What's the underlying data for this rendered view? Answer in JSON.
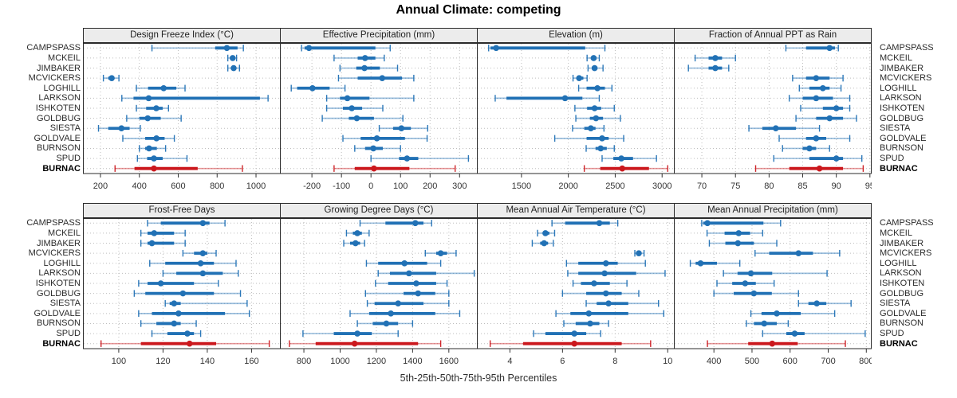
{
  "figure": {
    "title": "Annual Climate: competing",
    "caption": "5th-25th-50th-75th-95th Percentiles"
  },
  "sites": [
    "CAMPSPASS",
    "MCKEIL",
    "JIMBAKER",
    "MCVICKERS",
    "LOGHILL",
    "LARKSON",
    "ISHKOTEN",
    "GOLDBUG",
    "SIESTA",
    "GOLDVALE",
    "BURNSON",
    "SPUD",
    "BURNAC"
  ],
  "highlight_site": "BURNAC",
  "colors": {
    "series": "#2171b5",
    "highlight": "#cb181d",
    "strip_bg": "#ececec",
    "grid": "#bdbdbd",
    "axis_text": "#333333",
    "border": "#2b2b2b"
  },
  "percentile_labels": [
    "5th",
    "25th",
    "50th",
    "75th",
    "95th"
  ],
  "chart_data": [
    {
      "type": "dotplot",
      "title": "Design Freeze Index (°C)",
      "row": 0,
      "col": 0,
      "xlim": [
        112,
        1125
      ],
      "ticks": [
        200,
        400,
        600,
        800,
        1000
      ],
      "values": {
        "CAMPSPASS": [
          465,
          790,
          850,
          905,
          935
        ],
        "MCKEIL": [
          855,
          870,
          880,
          890,
          900
        ],
        "JIMBAKER": [
          855,
          875,
          885,
          895,
          915
        ],
        "MCVICKERS": [
          215,
          240,
          258,
          272,
          295
        ],
        "LOGHILL": [
          385,
          445,
          525,
          590,
          635
        ],
        "LARKSON": [
          310,
          370,
          448,
          1020,
          1062
        ],
        "ISHKOTEN": [
          385,
          435,
          487,
          520,
          550
        ],
        "GOLDBUG": [
          335,
          400,
          443,
          510,
          615
        ],
        "SIESTA": [
          190,
          240,
          308,
          350,
          405
        ],
        "GOLDVALE": [
          315,
          430,
          488,
          530,
          580
        ],
        "BURNSON": [
          400,
          430,
          450,
          490,
          535
        ],
        "SPUD": [
          390,
          440,
          475,
          520,
          645
        ],
        "BURNAC": [
          275,
          375,
          475,
          700,
          930
        ]
      }
    },
    {
      "type": "dotplot",
      "title": "Effective Precipitation (mm)",
      "row": 0,
      "col": 1,
      "xlim": [
        -307,
        360
      ],
      "ticks": [
        -200,
        -100,
        0,
        100,
        200,
        300
      ],
      "values": {
        "CAMPSPASS": [
          -235,
          -225,
          -210,
          15,
          65
        ],
        "MCKEIL": [
          -125,
          -45,
          -20,
          15,
          45
        ],
        "JIMBAKER": [
          -105,
          -50,
          -22,
          30,
          90
        ],
        "MCVICKERS": [
          -110,
          -45,
          38,
          105,
          145
        ],
        "LOGHILL": [
          -270,
          -250,
          -198,
          -140,
          -88
        ],
        "LARKSON": [
          -150,
          -105,
          -80,
          -5,
          145
        ],
        "ISHKOTEN": [
          -150,
          -95,
          -65,
          -30,
          40
        ],
        "GOLDBUG": [
          -165,
          -75,
          -48,
          10,
          108
        ],
        "SIESTA": [
          28,
          75,
          103,
          135,
          192
        ],
        "GOLDVALE": [
          -95,
          -35,
          20,
          115,
          190
        ],
        "BURNSON": [
          -55,
          -20,
          8,
          40,
          100
        ],
        "SPUD": [
          0,
          95,
          122,
          160,
          330
        ],
        "BURNAC": [
          -125,
          -55,
          10,
          130,
          285
        ]
      }
    },
    {
      "type": "dotplot",
      "title": "Elevation (m)",
      "row": 0,
      "col": 2,
      "xlim": [
        1029,
        3130
      ],
      "ticks": [
        1500,
        2000,
        2500,
        3000
      ],
      "values": {
        "CAMPSPASS": [
          1150,
          1170,
          1230,
          2180,
          2390
        ],
        "MCKEIL": [
          2200,
          2240,
          2270,
          2300,
          2330
        ],
        "JIMBAKER": [
          2210,
          2250,
          2280,
          2310,
          2370
        ],
        "MCVICKERS": [
          2050,
          2090,
          2115,
          2160,
          2200
        ],
        "LOGHILL": [
          2110,
          2195,
          2310,
          2390,
          2465
        ],
        "LARKSON": [
          1220,
          1340,
          1965,
          2150,
          2330
        ],
        "ISHKOTEN": [
          2070,
          2200,
          2280,
          2350,
          2490
        ],
        "GOLDBUG": [
          2080,
          2230,
          2295,
          2370,
          2555
        ],
        "SIESTA": [
          2045,
          2170,
          2240,
          2290,
          2380
        ],
        "GOLDVALE": [
          1855,
          2195,
          2360,
          2430,
          2590
        ],
        "BURNSON": [
          2190,
          2290,
          2345,
          2410,
          2490
        ],
        "SPUD": [
          2360,
          2480,
          2565,
          2690,
          2940
        ],
        "BURNAC": [
          2170,
          2340,
          2575,
          2860,
          3060
        ]
      }
    },
    {
      "type": "dotplot",
      "title": "Fraction of Annual PPT as Rain",
      "row": 0,
      "col": 3,
      "xlim": [
        65.9,
        95.2
      ],
      "ticks": [
        70,
        75,
        80,
        85,
        90,
        95
      ],
      "values": {
        "CAMPSPASS": [
          82.5,
          85.5,
          89,
          89.8,
          90.3
        ],
        "MCKEIL": [
          69,
          71,
          72,
          73,
          75
        ],
        "JIMBAKER": [
          68,
          71,
          72,
          73,
          74
        ],
        "MCVICKERS": [
          83.5,
          85.5,
          87,
          89,
          91
        ],
        "LOGHILL": [
          84.5,
          86,
          88,
          89,
          90.7
        ],
        "LARKSON": [
          83,
          85,
          87,
          89.5,
          92
        ],
        "ISHKOTEN": [
          84.7,
          88,
          90,
          91,
          92
        ],
        "GOLDBUG": [
          84,
          87,
          89,
          91,
          93
        ],
        "SIESTA": [
          77,
          79,
          81,
          84,
          87.5
        ],
        "GOLDVALE": [
          81.5,
          85.5,
          87,
          88.5,
          92
        ],
        "BURNSON": [
          82,
          85,
          86,
          87,
          89
        ],
        "SPUD": [
          80.7,
          86,
          90,
          91,
          93.8
        ],
        "BURNAC": [
          78,
          83,
          87.5,
          91,
          94
        ]
      }
    },
    {
      "type": "dotplot",
      "title": "Frost-Free Days",
      "row": 1,
      "col": 0,
      "xlim": [
        84,
        173
      ],
      "ticks": [
        100,
        120,
        140,
        160
      ],
      "values": {
        "CAMPSPASS": [
          113,
          119,
          138,
          141,
          148
        ],
        "MCKEIL": [
          110,
          113,
          116,
          125,
          130
        ],
        "JIMBAKER": [
          110,
          113,
          115,
          125,
          130
        ],
        "MCVICKERS": [
          129,
          134,
          138,
          140,
          144
        ],
        "LOGHILL": [
          114,
          121,
          137,
          143,
          153
        ],
        "LARKSON": [
          120,
          126,
          138,
          147,
          154
        ],
        "ISHKOTEN": [
          109,
          113,
          119,
          134,
          145
        ],
        "GOLDBUG": [
          107,
          112,
          129,
          143,
          155
        ],
        "SIESTA": [
          121,
          123,
          125,
          128,
          158
        ],
        "GOLDVALE": [
          109,
          115,
          127,
          148,
          159
        ],
        "BURNSON": [
          110,
          117,
          125,
          128,
          135
        ],
        "SPUD": [
          115,
          122,
          131,
          134,
          137
        ],
        "BURNAC": [
          92,
          110,
          132,
          144,
          168
        ]
      }
    },
    {
      "type": "dotplot",
      "title": "Growing Degree Days (°C)",
      "row": 1,
      "col": 1,
      "xlim": [
        670,
        1757
      ],
      "ticks": [
        800,
        1000,
        1200,
        1400,
        1600
      ],
      "values": {
        "CAMPSPASS": [
          1110,
          1250,
          1415,
          1460,
          1505
        ],
        "MCKEIL": [
          1035,
          1070,
          1095,
          1120,
          1160
        ],
        "JIMBAKER": [
          1020,
          1055,
          1085,
          1110,
          1135
        ],
        "MCVICKERS": [
          1470,
          1530,
          1555,
          1590,
          1640
        ],
        "LOGHILL": [
          1145,
          1210,
          1355,
          1480,
          1555
        ],
        "LARKSON": [
          1210,
          1275,
          1380,
          1530,
          1740
        ],
        "ISHKOTEN": [
          1195,
          1265,
          1420,
          1530,
          1590
        ],
        "GOLDBUG": [
          1140,
          1350,
          1430,
          1525,
          1600
        ],
        "SIESTA": [
          1150,
          1190,
          1320,
          1460,
          1600
        ],
        "GOLDVALE": [
          1055,
          1160,
          1280,
          1525,
          1660
        ],
        "BURNSON": [
          1095,
          1180,
          1255,
          1320,
          1400
        ],
        "SPUD": [
          795,
          965,
          1095,
          1175,
          1320
        ],
        "BURNAC": [
          720,
          865,
          1080,
          1430,
          1555
        ]
      }
    },
    {
      "type": "dotplot",
      "title": "Mean Annual Air Temperature (°C)",
      "row": 1,
      "col": 2,
      "xlim": [
        2.76,
        10.25
      ],
      "ticks": [
        4,
        6,
        8,
        10
      ],
      "values": {
        "CAMPSPASS": [
          5.6,
          6.1,
          7.4,
          7.8,
          8.1
        ],
        "MCKEIL": [
          5.05,
          5.25,
          5.35,
          5.5,
          5.7
        ],
        "JIMBAKER": [
          4.85,
          5.15,
          5.3,
          5.45,
          5.65
        ],
        "MCVICKERS": [
          8.75,
          8.85,
          8.9,
          9.0,
          9.1
        ],
        "LOGHILL": [
          6.15,
          6.6,
          7.65,
          8.1,
          9.15
        ],
        "LARKSON": [
          6.2,
          6.6,
          7.6,
          8.8,
          9.9
        ],
        "ISHKOTEN": [
          6.4,
          6.7,
          7.2,
          7.8,
          8.45
        ],
        "GOLDBUG": [
          6.0,
          6.9,
          7.65,
          8.25,
          8.9
        ],
        "SIESTA": [
          6.9,
          7.3,
          7.75,
          8.5,
          9.65
        ],
        "GOLDVALE": [
          5.75,
          6.3,
          7.0,
          8.5,
          9.85
        ],
        "BURNSON": [
          6.05,
          6.5,
          7.05,
          7.4,
          7.75
        ],
        "SPUD": [
          4.9,
          5.35,
          6.45,
          6.9,
          7.45
        ],
        "BURNAC": [
          3.25,
          4.5,
          6.45,
          8.25,
          9.35
        ]
      }
    },
    {
      "type": "dotplot",
      "title": "Mean Annual Precipitation (mm)",
      "row": 1,
      "col": 3,
      "xlim": [
        296,
        813
      ],
      "ticks": [
        400,
        500,
        600,
        700,
        800
      ],
      "values": {
        "CAMPSPASS": [
          368,
          372,
          383,
          530,
          575
        ],
        "MCKEIL": [
          382,
          428,
          465,
          495,
          528
        ],
        "JIMBAKER": [
          388,
          430,
          463,
          505,
          565
        ],
        "MCVICKERS": [
          508,
          545,
          622,
          660,
          730
        ],
        "LOGHILL": [
          338,
          352,
          365,
          408,
          468
        ],
        "LARKSON": [
          425,
          462,
          497,
          553,
          697
        ],
        "ISHKOTEN": [
          408,
          448,
          482,
          510,
          558
        ],
        "GOLDBUG": [
          400,
          452,
          505,
          552,
          622
        ],
        "SIESTA": [
          622,
          648,
          670,
          695,
          760
        ],
        "GOLDVALE": [
          497,
          525,
          565,
          628,
          717
        ],
        "BURNSON": [
          485,
          505,
          532,
          565,
          595
        ],
        "SPUD": [
          528,
          590,
          612,
          638,
          797
        ],
        "BURNAC": [
          383,
          490,
          553,
          620,
          745
        ]
      }
    }
  ]
}
